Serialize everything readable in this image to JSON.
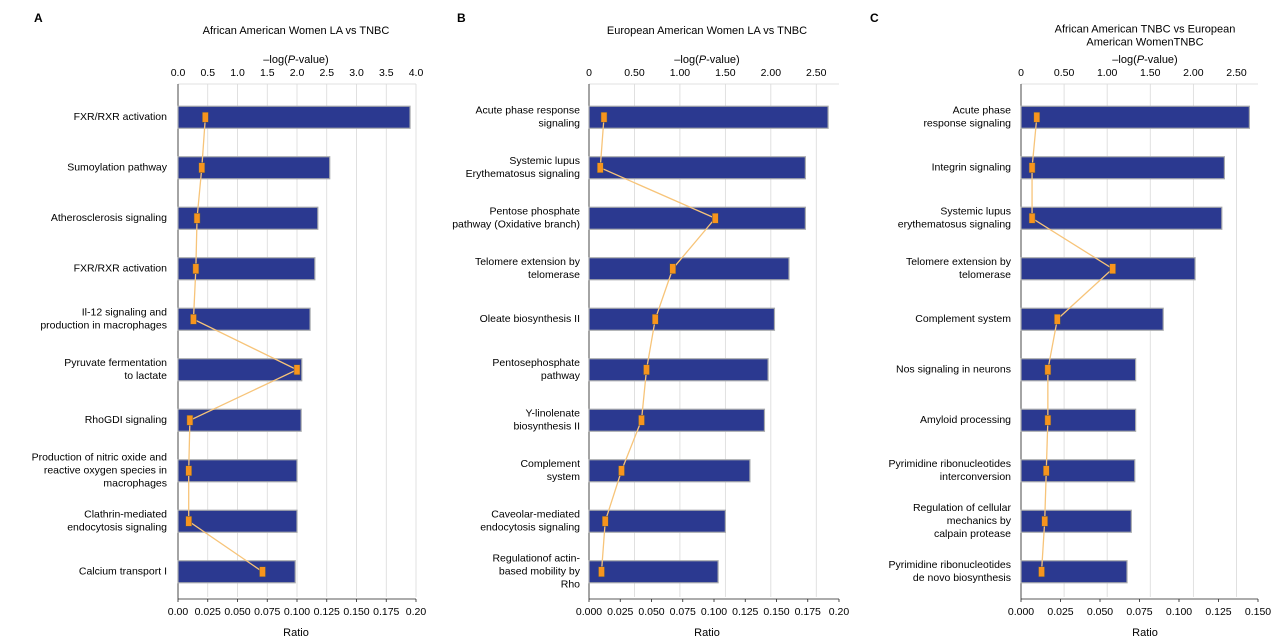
{
  "chart_data": [
    {
      "type": "bar",
      "panel_letter": "A",
      "title": "African American Women LA vs TNBC",
      "xlabel_top": "–log(P-value)",
      "xlabel_bottom": "Ratio",
      "top_axis": {
        "lim": [
          0,
          4.0
        ],
        "ticks": [
          "0.0",
          "0.5",
          "1.0",
          "1.5",
          "2.0",
          "2.5",
          "3.0",
          "3.5",
          "4.0"
        ]
      },
      "bottom_axis": {
        "lim": [
          0,
          0.2
        ],
        "ticks": [
          "0.00",
          "0.025",
          "0.050",
          "0.075",
          "0.100",
          "0.125",
          "0.150",
          "0.175",
          "0.20"
        ]
      },
      "categories": [
        "FXR/RXR activation",
        "Sumoylation pathway",
        "Atherosclerosis signaling",
        "FXR/RXR activation",
        "Il-12 signaling and\nproduction in macrophages",
        "Pyruvate fermentation\nto lactate",
        "RhoGDI signaling",
        "Production of nitric oxide and\nreactive oxygen species in\nmacrophages",
        "Clathrin-mediated\nendocytosis signaling",
        "Calcium transport I"
      ],
      "series": [
        {
          "name": "–log(P-value)",
          "kind": "bar",
          "axis": "top",
          "values": [
            3.9,
            2.55,
            2.35,
            2.3,
            2.22,
            2.08,
            2.07,
            2.0,
            2.0,
            1.97
          ]
        },
        {
          "name": "Ratio",
          "kind": "line",
          "axis": "bottom",
          "values": [
            0.023,
            0.02,
            0.016,
            0.015,
            0.013,
            0.1,
            0.01,
            0.009,
            0.009,
            0.071
          ]
        }
      ],
      "grid": true
    },
    {
      "type": "bar",
      "panel_letter": "B",
      "title": "European American Women LA vs TNBC",
      "xlabel_top": "–log(P-value)",
      "xlabel_bottom": "Ratio",
      "top_axis": {
        "lim": [
          0,
          2.75
        ],
        "ticks": [
          "0",
          "0.50",
          "1.00",
          "1.50",
          "2.00",
          "2.50"
        ]
      },
      "bottom_axis": {
        "lim": [
          0,
          0.2
        ],
        "ticks": [
          "0.000",
          "0.025",
          "0.050",
          "0.075",
          "0.100",
          "0.125",
          "0.150",
          "0.175",
          "0.20"
        ]
      },
      "categories": [
        "Acute phase response\nsignaling",
        "Systemic lupus\nErythematosus signaling",
        "Pentose phosphate\npathway (Oxidative branch)",
        "Telomere extension by\ntelomerase",
        "Oleate biosynthesis II",
        "Pentosephosphate\npathway",
        "Y-linolenate\nbiosynthesis II",
        "Complement\nsystem",
        "Caveolar-mediated\nendocytosis signaling",
        "Regulationof actin-\nbased mobility by\nRho"
      ],
      "series": [
        {
          "name": "–log(P-value)",
          "kind": "bar",
          "axis": "top",
          "values": [
            2.63,
            2.38,
            2.38,
            2.2,
            2.04,
            1.97,
            1.93,
            1.77,
            1.5,
            1.42
          ]
        },
        {
          "name": "Ratio",
          "kind": "line",
          "axis": "bottom",
          "values": [
            0.012,
            0.009,
            0.101,
            0.067,
            0.053,
            0.046,
            0.042,
            0.026,
            0.013,
            0.01
          ]
        }
      ],
      "grid": true
    },
    {
      "type": "bar",
      "panel_letter": "C",
      "title": "African American TNBC vs European\nAmerican WomenTNBC",
      "xlabel_top": "–log(P-value)",
      "xlabel_bottom": "Ratio",
      "top_axis": {
        "lim": [
          0,
          2.75
        ],
        "ticks": [
          "0",
          "0.50",
          "1.00",
          "1.50",
          "2.00",
          "2.50"
        ]
      },
      "bottom_axis": {
        "lim": [
          0,
          0.15
        ],
        "ticks": [
          "0.000",
          "0.025",
          "0.050",
          "0.075",
          "0.100",
          "0.125",
          "0.150"
        ]
      },
      "categories": [
        "Acute phase\nresponse signaling",
        "Integrin signaling",
        "Systemic lupus\nerythematosus signaling",
        "Telomere extension by\ntelomerase",
        "Complement system",
        "Nos signaling in neurons",
        "Amyloid processing",
        "Pyrimidine ribonucleotides\ninterconversion",
        "Regulation of cellular\nmechanics by\ncalpain protease",
        "Pyrimidine ribonucleotides\nde novo biosynthesis"
      ],
      "series": [
        {
          "name": "–log(P-value)",
          "kind": "bar",
          "axis": "top",
          "values": [
            2.65,
            2.36,
            2.33,
            2.02,
            1.65,
            1.33,
            1.33,
            1.32,
            1.28,
            1.23
          ]
        },
        {
          "name": "Ratio",
          "kind": "line",
          "axis": "bottom",
          "values": [
            0.01,
            0.007,
            0.007,
            0.058,
            0.023,
            0.017,
            0.017,
            0.016,
            0.015,
            0.013
          ]
        }
      ],
      "grid": true
    }
  ],
  "colors": {
    "bar_fill": "#2b3990",
    "bar_outline": "#a7a9ac",
    "line": "#f7c479",
    "marker_fill": "#f7941d",
    "marker_edge": "#555555",
    "grid": "#d9d9d9",
    "axis": "#222222"
  }
}
